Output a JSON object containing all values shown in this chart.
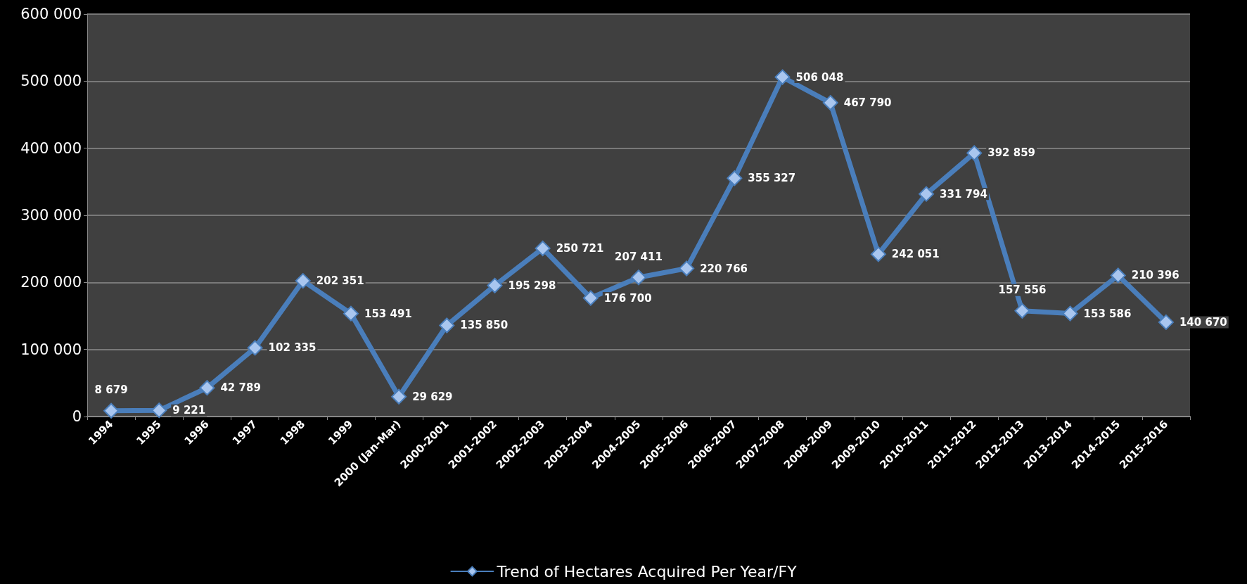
{
  "chart_data": {
    "type": "line",
    "categories": [
      "1994",
      "1995",
      "1996",
      "1997",
      "1998",
      "1999",
      "2000 (Jan-Mar)",
      "2000-2001",
      "2001-2002",
      "2002-2003",
      "2003-2004",
      "2004-2005",
      "2005-2006",
      "2006-2007",
      "2007-2008",
      "2008-2009",
      "2009-2010",
      "2010-2011",
      "2011-2012",
      "2012-2013",
      "2013-2014",
      "2014-2015",
      "2015-2016"
    ],
    "series": [
      {
        "name": "Trend of Hectares Acquired Per Year/FY",
        "color": "#4a7ebb",
        "values": [
          8679,
          9221,
          42789,
          102335,
          202351,
          153491,
          29629,
          135850,
          195298,
          250721,
          176700,
          207411,
          220766,
          355327,
          506048,
          467790,
          242051,
          331794,
          392859,
          157556,
          153586,
          210396,
          140670
        ],
        "value_labels": [
          "8 679",
          "9 221",
          "42 789",
          "102 335",
          "202 351",
          "153 491",
          "29 629",
          "135 850",
          "195 298",
          "250 721",
          "176 700",
          "207 411",
          "220 766",
          "355 327",
          "506 048",
          "467 790",
          "242 051",
          "331 794",
          "392 859",
          "157 556",
          "153 586",
          "210 396",
          "140 670"
        ]
      }
    ],
    "ylim": [
      0,
      600000
    ],
    "yticks": [
      {
        "value": 0,
        "label": "0"
      },
      {
        "value": 100000,
        "label": "100 000"
      },
      {
        "value": 200000,
        "label": "200 000"
      },
      {
        "value": 300000,
        "label": "300 000"
      },
      {
        "value": 400000,
        "label": "400 000"
      },
      {
        "value": 500000,
        "label": "500 000"
      },
      {
        "value": 600000,
        "label": "600 000"
      }
    ],
    "grid": "y",
    "legend": "bottom",
    "marker": "diamond",
    "line_style": "solid"
  }
}
